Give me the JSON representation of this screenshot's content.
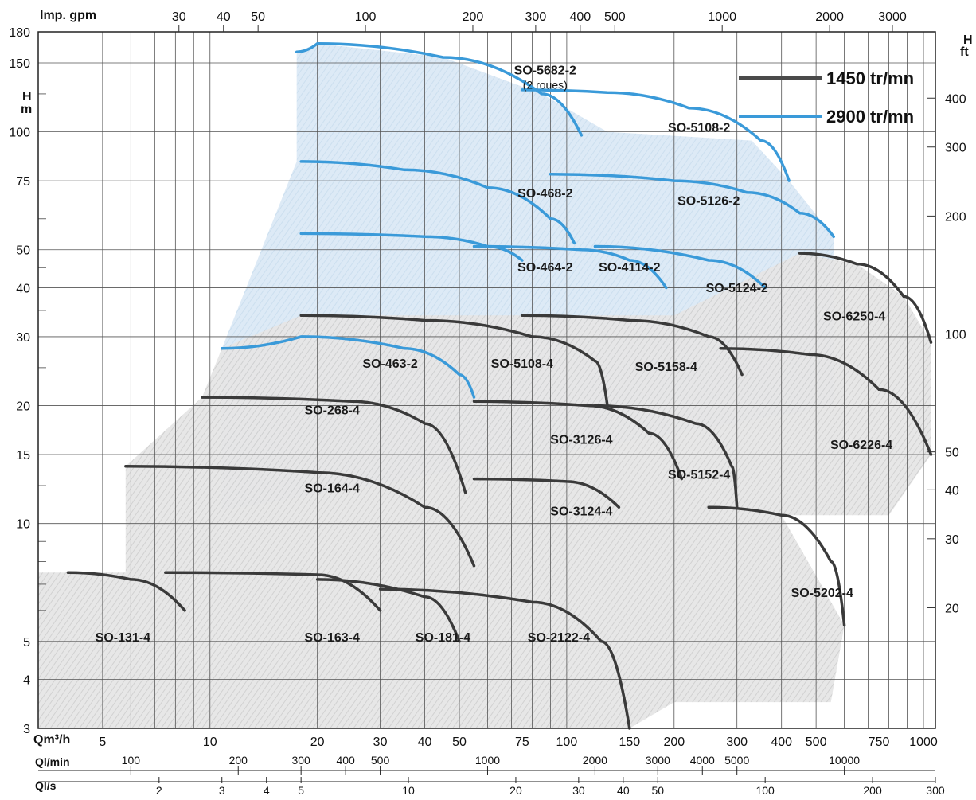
{
  "chart_data": {
    "type": "area",
    "axes": {
      "y_left_title": "H",
      "y_left_unit": "m",
      "y_right_title": "H",
      "y_right_unit": "ft",
      "x_top_label": "Imp. gpm",
      "x_main_label": "Qm³/h",
      "x_lmin_label": "Ql/min",
      "x_ls_label": "Ql/s",
      "y_left_ticks": [
        3,
        4,
        5,
        10,
        15,
        20,
        30,
        40,
        50,
        75,
        100,
        150,
        180
      ],
      "y_right_ticks": [
        20,
        30,
        40,
        50,
        100,
        200,
        300,
        400
      ],
      "x_main_ticks": [
        5,
        10,
        20,
        30,
        40,
        50,
        75,
        100,
        150,
        200,
        300,
        400,
        500,
        750,
        1000
      ],
      "x_top_ticks": [
        30,
        40,
        50,
        100,
        200,
        300,
        400,
        500,
        1000,
        2000,
        3000
      ],
      "x_lmin_ticks": [
        100,
        200,
        300,
        400,
        500,
        1000,
        2000,
        3000,
        4000,
        5000,
        10000
      ],
      "x_ls_ticks": [
        2,
        3,
        4,
        5,
        10,
        20,
        30,
        40,
        50,
        100,
        200,
        300
      ],
      "scale": "log-log"
    },
    "legend": [
      {
        "label": "1450 tr/mn",
        "color": "#4a4a4a"
      },
      {
        "label": "2900 tr/mn",
        "color": "#3a9ad9"
      }
    ],
    "series": [
      {
        "name": "SO-5682-2",
        "note": "(2 roues)",
        "speed": "2900",
        "curve": [
          [
            17.5,
            160
          ],
          [
            20,
            168
          ],
          [
            45,
            155
          ],
          [
            85,
            125
          ],
          [
            110,
            98
          ]
        ]
      },
      {
        "name": "SO-5108-2",
        "speed": "2900",
        "curve": [
          [
            75,
            128
          ],
          [
            130,
            126
          ],
          [
            220,
            115
          ],
          [
            350,
            95
          ],
          [
            420,
            75
          ]
        ]
      },
      {
        "name": "SO-468-2",
        "speed": "2900",
        "curve": [
          [
            18,
            84
          ],
          [
            35,
            80
          ],
          [
            60,
            72
          ],
          [
            90,
            60
          ],
          [
            105,
            52
          ]
        ]
      },
      {
        "name": "SO-5126-2",
        "speed": "2900",
        "curve": [
          [
            90,
            78
          ],
          [
            200,
            75
          ],
          [
            320,
            70
          ],
          [
            450,
            62
          ],
          [
            560,
            54
          ]
        ]
      },
      {
        "name": "SO-464-2",
        "speed": "2900",
        "curve": [
          [
            18,
            55
          ],
          [
            40,
            54
          ],
          [
            60,
            51
          ],
          [
            75,
            47
          ]
        ]
      },
      {
        "name": "SO-4114-2",
        "speed": "2900",
        "curve": [
          [
            55,
            51
          ],
          [
            110,
            50
          ],
          [
            150,
            47
          ],
          [
            190,
            40
          ]
        ]
      },
      {
        "name": "SO-5124-2",
        "speed": "2900",
        "curve": [
          [
            120,
            51
          ],
          [
            250,
            47
          ],
          [
            360,
            40
          ]
        ]
      },
      {
        "name": "SO-463-2",
        "speed": "2900",
        "curve": [
          [
            10.8,
            28
          ],
          [
            18,
            30
          ],
          [
            35,
            28
          ],
          [
            50,
            24
          ],
          [
            55,
            21
          ]
        ]
      },
      {
        "name": "SO-6250-4",
        "speed": "1450",
        "curve": [
          [
            450,
            49
          ],
          [
            650,
            46
          ],
          [
            880,
            38
          ],
          [
            1050,
            29
          ]
        ]
      },
      {
        "name": "SO-5108-4",
        "speed": "1450",
        "curve": [
          [
            18,
            34
          ],
          [
            40,
            33
          ],
          [
            80,
            30
          ],
          [
            120,
            26
          ],
          [
            130,
            20
          ]
        ]
      },
      {
        "name": "SO-5158-4",
        "speed": "1450",
        "curve": [
          [
            75,
            34
          ],
          [
            150,
            33
          ],
          [
            250,
            30
          ],
          [
            310,
            24
          ]
        ]
      },
      {
        "name": "SO-6226-4",
        "speed": "1450",
        "curve": [
          [
            270,
            28
          ],
          [
            480,
            27
          ],
          [
            750,
            22
          ],
          [
            1050,
            15
          ]
        ]
      },
      {
        "name": "SO-268-4",
        "speed": "1450",
        "curve": [
          [
            9.5,
            21
          ],
          [
            25,
            20.5
          ],
          [
            40,
            18
          ],
          [
            52,
            12
          ]
        ]
      },
      {
        "name": "SO-3126-4",
        "speed": "1450",
        "curve": [
          [
            55,
            20.5
          ],
          [
            115,
            20
          ],
          [
            170,
            17
          ],
          [
            210,
            13
          ]
        ]
      },
      {
        "name": "SO-5152-4",
        "speed": "1450",
        "curve": [
          [
            120,
            20
          ],
          [
            230,
            18
          ],
          [
            290,
            14
          ],
          [
            300,
            11
          ]
        ]
      },
      {
        "name": "SO-164-4",
        "speed": "1450",
        "curve": [
          [
            5.8,
            14
          ],
          [
            20,
            13.5
          ],
          [
            40,
            11
          ],
          [
            55,
            7.8
          ]
        ]
      },
      {
        "name": "SO-3124-4",
        "speed": "1450",
        "curve": [
          [
            55,
            13
          ],
          [
            100,
            12.8
          ],
          [
            140,
            11
          ]
        ]
      },
      {
        "name": "SO-5202-4",
        "speed": "1450",
        "curve": [
          [
            250,
            11
          ],
          [
            400,
            10.5
          ],
          [
            550,
            8
          ],
          [
            600,
            5.5
          ]
        ]
      },
      {
        "name": "SO-131-4",
        "speed": "1450",
        "curve": [
          [
            4,
            7.5
          ],
          [
            6,
            7.2
          ],
          [
            8.5,
            6
          ]
        ]
      },
      {
        "name": "SO-163-4",
        "speed": "1450",
        "curve": [
          [
            7.5,
            7.5
          ],
          [
            20,
            7.4
          ],
          [
            30,
            6
          ]
        ]
      },
      {
        "name": "SO-181-4",
        "speed": "1450",
        "curve": [
          [
            20,
            7.2
          ],
          [
            40,
            6.5
          ],
          [
            50,
            5
          ]
        ]
      },
      {
        "name": "SO-2122-4",
        "speed": "1450",
        "curve": [
          [
            30,
            6.8
          ],
          [
            80,
            6.3
          ],
          [
            125,
            5
          ],
          [
            150,
            3
          ]
        ]
      }
    ],
    "regions": [
      {
        "name": "SO-5682-2",
        "lx": 87,
        "ly": 140,
        "sub": "(2 roues)"
      },
      {
        "name": "SO-5108-2",
        "lx": 235,
        "ly": 100
      },
      {
        "name": "SO-468-2",
        "lx": 87,
        "ly": 68
      },
      {
        "name": "SO-5126-2",
        "lx": 250,
        "ly": 65
      },
      {
        "name": "SO-464-2",
        "lx": 87,
        "ly": 44
      },
      {
        "name": "SO-4114-2",
        "lx": 150,
        "ly": 44
      },
      {
        "name": "SO-5124-2",
        "lx": 300,
        "ly": 39
      },
      {
        "name": "SO-6250-4",
        "lx": 640,
        "ly": 33
      },
      {
        "name": "SO-463-2",
        "lx": 32,
        "ly": 25
      },
      {
        "name": "SO-5108-4",
        "lx": 75,
        "ly": 25
      },
      {
        "name": "SO-5158-4",
        "lx": 190,
        "ly": 24.5
      },
      {
        "name": "SO-268-4",
        "lx": 22,
        "ly": 19
      },
      {
        "name": "SO-3126-4",
        "lx": 110,
        "ly": 16
      },
      {
        "name": "SO-6226-4",
        "lx": 670,
        "ly": 15.5
      },
      {
        "name": "SO-5152-4",
        "lx": 235,
        "ly": 13
      },
      {
        "name": "SO-164-4",
        "lx": 22,
        "ly": 12
      },
      {
        "name": "SO-3124-4",
        "lx": 110,
        "ly": 10.5
      },
      {
        "name": "SO-5202-4",
        "lx": 520,
        "ly": 6.5
      },
      {
        "name": "SO-131-4",
        "lx": 5.7,
        "ly": 5
      },
      {
        "name": "SO-163-4",
        "lx": 22,
        "ly": 5
      },
      {
        "name": "SO-181-4",
        "lx": 45,
        "ly": 5
      },
      {
        "name": "SO-2122-4",
        "lx": 95,
        "ly": 5
      }
    ]
  }
}
